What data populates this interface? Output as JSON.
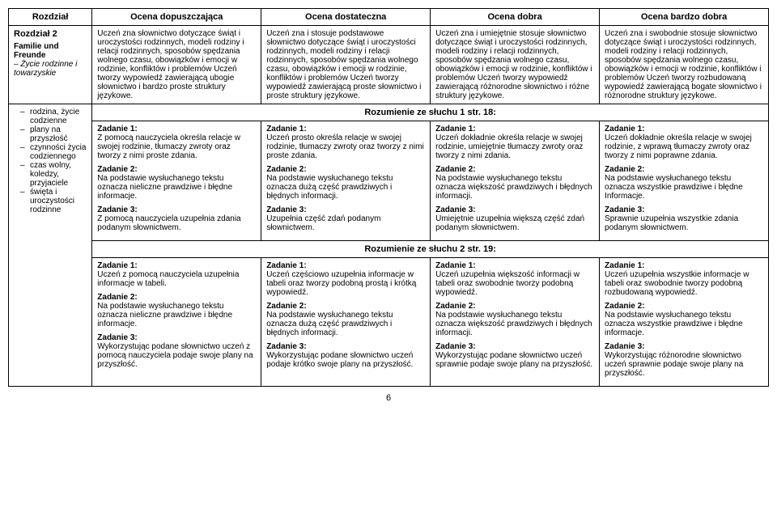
{
  "headers": {
    "rozdzial": "Rozdział",
    "dopuszczajaca": "Ocena dopuszczająca",
    "dostateczna": "Ocena dostateczna",
    "dobra": "Ocena dobra",
    "bardzo_dobra": "Ocena bardzo dobra"
  },
  "row1": {
    "sidebar": {
      "title": "Rozdział 2",
      "sub1": "Familie und Freunde",
      "sub2": "– Życie rodzinne i towarzyskie"
    },
    "c1": "Uczeń zna słownictwo dotyczące świąt i uroczystości rodzinnych, modeli rodziny i relacji rodzinnych, sposobów spędzania wolnego czasu, obowiązków i emocji w rodzinie, konfliktów i problemów Uczeń tworzy wypowiedź zawierającą ubogie słownictwo i bardzo proste struktury językowe.",
    "c2": "Uczeń zna i stosuje podstawowe słownictwo dotyczące świąt i uroczystości rodzinnych, modeli rodziny i relacji rodzinnych, sposobów spędzania wolnego czasu, obowiązków i emocji w rodzinie, konfliktów i problemów Uczeń tworzy wypowiedź zawierającą proste słownictwo i proste struktury językowe.",
    "c3": "Uczeń zna i umiejętnie stosuje słownictwo dotyczące świąt i uroczystości rodzinnych, modeli rodziny i relacji rodzinnych, sposobów spędzania wolnego czasu, obowiązków i emocji w rodzinie, konfliktów i problemów Uczeń tworzy wypowiedź zawierającą różnorodne słownictwo i różne struktury językowe.",
    "c4": "Uczeń zna i swobodnie stosuje słownictwo dotyczące świąt i uroczystości rodzinnych, modeli rodziny i relacji rodzinnych, sposobów spędzania wolnego czasu, obowiązków i emocji w rodzinie, konfliktów i problemów Uczeń tworzy rozbudowaną wypowiedź zawierającą bogate słownictwo i różnorodne struktury językowe."
  },
  "row2": {
    "sidebar": {
      "items": [
        "rodzina, życie codzienne",
        "plany na przyszłość",
        "czynności życia codziennego",
        "czas wolny, koledzy, przyjaciele",
        "święta i uroczystości rodzinne"
      ]
    },
    "section1_title": "Rozumienie ze słuchu 1 str. 18:",
    "section2_title": "Rozumienie ze słuchu 2 str. 19:",
    "s1": {
      "c1": {
        "t1l": "Zadanie 1:",
        "t1": "Z pomocą nauczyciela określa relacje w swojej rodzinie, tłumaczy zwroty oraz tworzy z nimi proste zdania.",
        "t2l": "Zadanie 2:",
        "t2": "Na podstawie wysłuchanego tekstu oznacza nieliczne prawdziwe i błędne informacje.",
        "t3l": "Zadanie 3:",
        "t3": "Z pomocą nauczyciela uzupełnia zdania podanym słownictwem."
      },
      "c2": {
        "t1l": "Zadanie 1:",
        "t1": "Uczeń prosto określa relacje w swojej rodzinie, tłumaczy zwroty oraz tworzy z nimi proste zdania.",
        "t2l": "Zadanie 2:",
        "t2": "Na podstawie wysłuchanego tekstu oznacza dużą część prawdziwych i błędnych informacji.",
        "t3l": "Zadanie 3:",
        "t3": "Uzupełnia część zdań podanym słownictwem."
      },
      "c3": {
        "t1l": "Zadanie 1:",
        "t1": "Uczeń dokładnie określa relacje w swojej rodzinie, umiejętnie tłumaczy zwroty oraz tworzy z nimi zdania.",
        "t2l": "Zadanie 2:",
        "t2": "Na podstawie wysłuchanego tekstu oznacza większość prawdziwych i błędnych informacji.",
        "t3l": "Zadanie 3:",
        "t3": "Umiejętnie uzupełnia większą część zdań podanym słownictwem."
      },
      "c4": {
        "t1l": "Zadanie 1:",
        "t1": "Uczeń dokładnie określa relacje w swojej rodzinie, z wprawą tłumaczy zwroty oraz tworzy z nimi poprawne zdania.",
        "t2l": "Zadanie 2:",
        "t2": "Na podstawie wysłuchanego tekstu oznacza wszystkie prawdziwe i błędne Informacje.",
        "t3l": "Zadanie 3:",
        "t3": "Sprawnie uzupełnia wszystkie zdania podanym słownictwem."
      }
    },
    "s2": {
      "c1": {
        "t1l": "Zadanie 1:",
        "t1": "Uczeń z pomocą nauczyciela uzupełnia informacje w tabeli.",
        "t2l": "Zadanie 2:",
        "t2": "Na podstawie wysłuchanego tekstu oznacza nieliczne prawdziwe i błędne informacje.",
        "t3l": "Zadanie 3:",
        "t3": "Wykorzystując podane słownictwo uczeń z pomocą nauczyciela podaje swoje plany na przyszłość."
      },
      "c2": {
        "t1l": "Zadanie 1:",
        "t1": "Uczeń częściowo uzupełnia informacje w tabeli oraz tworzy podobną prostą i krótką wypowiedź.",
        "t2l": "Zadanie 2:",
        "t2": "Na podstawie wysłuchanego tekstu oznacza dużą część prawdziwych i błędnych informacji.",
        "t3l": "Zadanie 3:",
        "t3": "Wykorzystując podane słownictwo uczeń podaje krótko swoje plany na przyszłość."
      },
      "c3": {
        "t1l": "Zadanie 1:",
        "t1": "Uczeń uzupełnia większość informacji w tabeli oraz swobodnie tworzy podobną wypowiedź.",
        "t2l": "Zadanie 2:",
        "t2": "Na podstawie wysłuchanego tekstu oznacza większość prawdziwych i błędnych informacji.",
        "t3l": "Zadanie 3:",
        "t3": "Wykorzystując podane słownictwo uczeń sprawnie podaje swoje plany na przyszłość."
      },
      "c4": {
        "t1l": "Zadanie 1:",
        "t1": "Uczeń uzupełnia wszystkie informacje w tabeli oraz swobodnie tworzy podobną rozbudowaną wypowiedź.",
        "t2l": "Zadanie 2:",
        "t2": "Na podstawie wysłuchanego tekstu oznacza wszystkie prawdziwe i błędne informacje.",
        "t3l": "Zadanie 3:",
        "t3": "Wykorzystując różnorodne słownictwo uczeń sprawnie podaje swoje plany na przyszłość."
      }
    }
  },
  "page_number": "6"
}
